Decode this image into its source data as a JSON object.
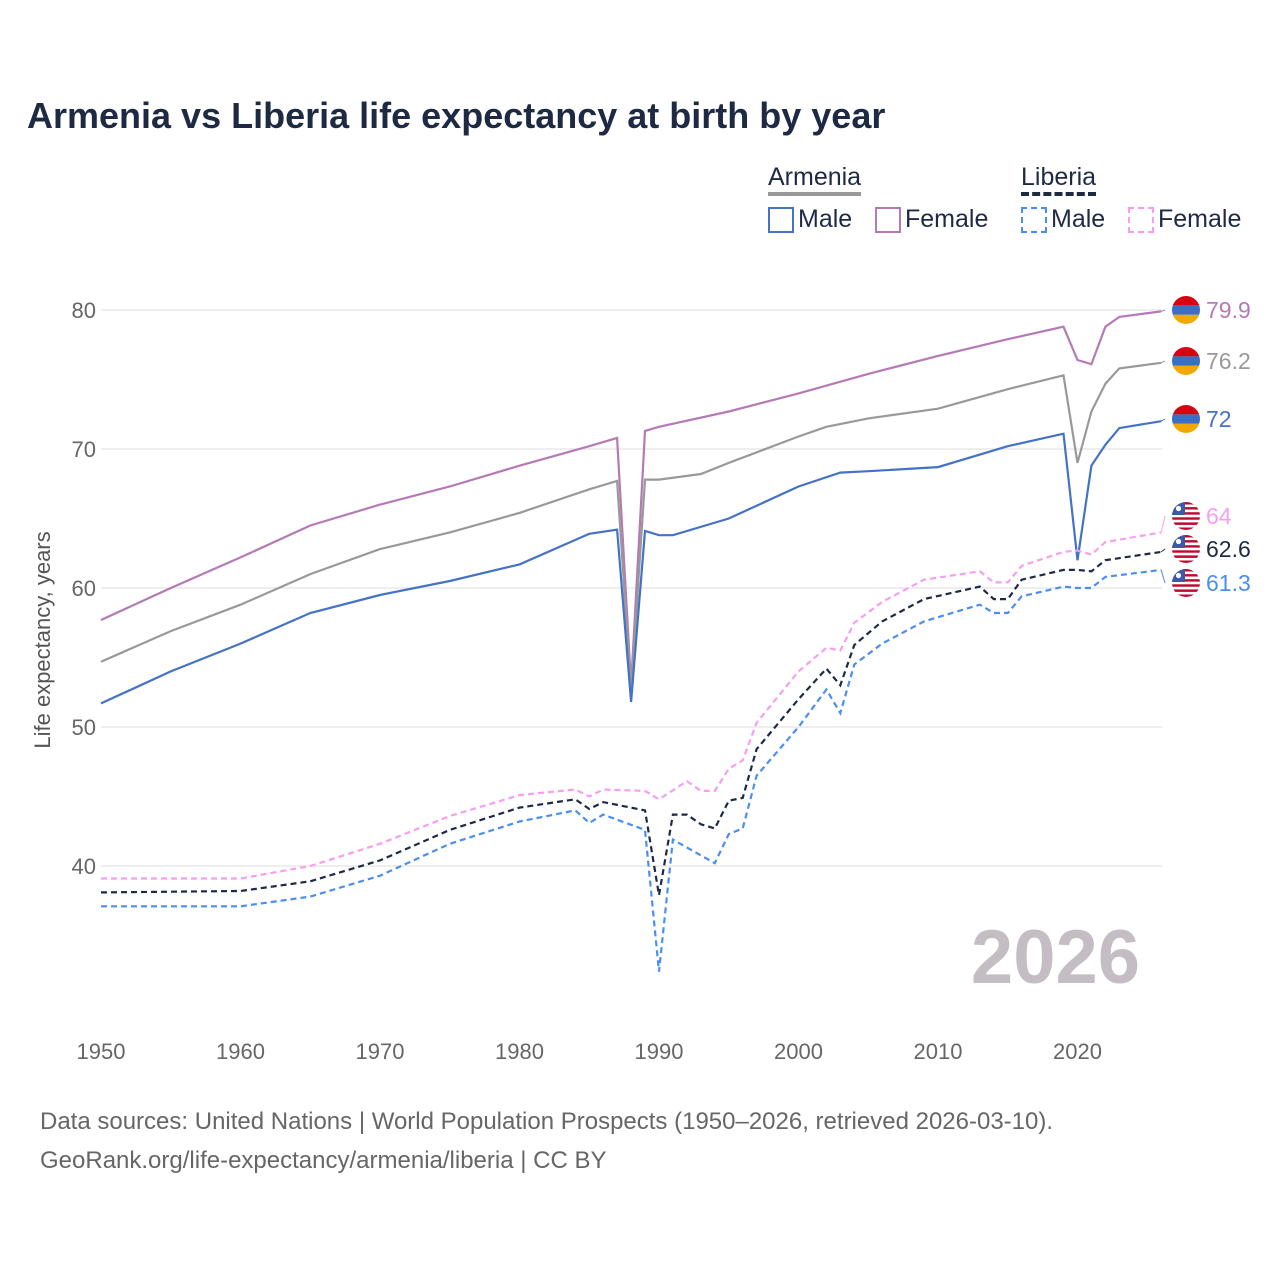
{
  "title": "Armenia vs Liberia life expectancy at birth by year",
  "legend": {
    "groups": [
      {
        "name": "Armenia",
        "items": [
          "Male",
          "Female"
        ]
      },
      {
        "name": "Liberia",
        "items": [
          "Male",
          "Female"
        ]
      }
    ]
  },
  "year_watermark": "2026",
  "footer": {
    "line1": "Data sources: United Nations | World Population Prospects (1950–2026, retrieved 2026-03-10).",
    "line2": "GeoRank.org/life-expectancy/armenia/liberia | CC BY"
  },
  "chart_data": {
    "type": "line",
    "title": "Armenia vs Liberia life expectancy at birth by year",
    "xlabel": "",
    "ylabel": "Life expectancy, years",
    "xlim": [
      1950,
      2026
    ],
    "ylim": [
      30,
      82
    ],
    "xticks": [
      "1950",
      "1960",
      "1970",
      "1980",
      "1990",
      "2000",
      "2010",
      "2020"
    ],
    "yticks": [
      "40",
      "50",
      "60",
      "70",
      "80"
    ],
    "grid": true,
    "legend_position": "top-right",
    "series": [
      {
        "name": "Armenia Female",
        "country": "Armenia",
        "color": "#b57ab5",
        "dashed": false,
        "end_label": "79.9",
        "points": [
          [
            1950,
            57.7
          ],
          [
            1955,
            60.0
          ],
          [
            1960,
            62.2
          ],
          [
            1965,
            64.5
          ],
          [
            1970,
            66.0
          ],
          [
            1975,
            67.3
          ],
          [
            1980,
            68.8
          ],
          [
            1985,
            70.2
          ],
          [
            1987,
            70.8
          ],
          [
            1988,
            53.0
          ],
          [
            1989,
            71.3
          ],
          [
            1990,
            71.6
          ],
          [
            1995,
            72.7
          ],
          [
            2000,
            74.0
          ],
          [
            2005,
            75.4
          ],
          [
            2010,
            76.7
          ],
          [
            2015,
            77.9
          ],
          [
            2019,
            78.8
          ],
          [
            2020,
            76.4
          ],
          [
            2021,
            76.1
          ],
          [
            2022,
            78.8
          ],
          [
            2023,
            79.5
          ],
          [
            2026,
            79.9
          ]
        ]
      },
      {
        "name": "Armenia",
        "country": "Armenia",
        "color": "#999999",
        "dashed": false,
        "end_label": "76.2",
        "points": [
          [
            1950,
            54.7
          ],
          [
            1955,
            56.9
          ],
          [
            1960,
            58.8
          ],
          [
            1965,
            61.0
          ],
          [
            1970,
            62.8
          ],
          [
            1975,
            64.0
          ],
          [
            1980,
            65.4
          ],
          [
            1985,
            67.1
          ],
          [
            1987,
            67.7
          ],
          [
            1988,
            52.5
          ],
          [
            1989,
            67.8
          ],
          [
            1990,
            67.8
          ],
          [
            1993,
            68.2
          ],
          [
            1995,
            69.0
          ],
          [
            2000,
            70.9
          ],
          [
            2002,
            71.6
          ],
          [
            2005,
            72.2
          ],
          [
            2010,
            72.9
          ],
          [
            2015,
            74.3
          ],
          [
            2019,
            75.3
          ],
          [
            2020,
            69.0
          ],
          [
            2021,
            72.7
          ],
          [
            2022,
            74.7
          ],
          [
            2023,
            75.8
          ],
          [
            2026,
            76.2
          ]
        ]
      },
      {
        "name": "Armenia Male",
        "country": "Armenia",
        "color": "#4472c4",
        "dashed": false,
        "end_label": "72",
        "points": [
          [
            1950,
            51.7
          ],
          [
            1955,
            54.0
          ],
          [
            1960,
            56.0
          ],
          [
            1965,
            58.2
          ],
          [
            1970,
            59.5
          ],
          [
            1975,
            60.5
          ],
          [
            1980,
            61.7
          ],
          [
            1985,
            63.9
          ],
          [
            1987,
            64.2
          ],
          [
            1988,
            51.8
          ],
          [
            1989,
            64.1
          ],
          [
            1990,
            63.8
          ],
          [
            1991,
            63.8
          ],
          [
            1995,
            65.0
          ],
          [
            2000,
            67.3
          ],
          [
            2003,
            68.3
          ],
          [
            2005,
            68.4
          ],
          [
            2010,
            68.7
          ],
          [
            2015,
            70.2
          ],
          [
            2019,
            71.1
          ],
          [
            2020,
            62.0
          ],
          [
            2021,
            68.8
          ],
          [
            2022,
            70.3
          ],
          [
            2023,
            71.5
          ],
          [
            2026,
            72.0
          ]
        ]
      },
      {
        "name": "Liberia Female",
        "country": "Liberia",
        "color": "#f79ef0",
        "dashed": true,
        "end_label": "64",
        "points": [
          [
            1950,
            39.1
          ],
          [
            1960,
            39.1
          ],
          [
            1965,
            40.0
          ],
          [
            1970,
            41.6
          ],
          [
            1975,
            43.6
          ],
          [
            1980,
            45.1
          ],
          [
            1984,
            45.5
          ],
          [
            1985,
            45.0
          ],
          [
            1986,
            45.5
          ],
          [
            1989,
            45.4
          ],
          [
            1990,
            44.8
          ],
          [
            1992,
            46.1
          ],
          [
            1993,
            45.4
          ],
          [
            1994,
            45.4
          ],
          [
            1995,
            47.0
          ],
          [
            1996,
            47.6
          ],
          [
            1997,
            50.3
          ],
          [
            2000,
            54.0
          ],
          [
            2002,
            55.7
          ],
          [
            2003,
            55.5
          ],
          [
            2004,
            57.5
          ],
          [
            2006,
            59.0
          ],
          [
            2009,
            60.6
          ],
          [
            2013,
            61.2
          ],
          [
            2014,
            60.4
          ],
          [
            2015,
            60.4
          ],
          [
            2016,
            61.6
          ],
          [
            2019,
            62.6
          ],
          [
            2020,
            62.7
          ],
          [
            2021,
            62.4
          ],
          [
            2022,
            63.3
          ],
          [
            2026,
            64.0
          ]
        ]
      },
      {
        "name": "Liberia",
        "country": "Liberia",
        "color": "#1e2a44",
        "dashed": true,
        "end_label": "62.6",
        "points": [
          [
            1950,
            38.1
          ],
          [
            1960,
            38.2
          ],
          [
            1965,
            38.9
          ],
          [
            1970,
            40.4
          ],
          [
            1975,
            42.6
          ],
          [
            1980,
            44.2
          ],
          [
            1984,
            44.8
          ],
          [
            1985,
            44.1
          ],
          [
            1986,
            44.6
          ],
          [
            1989,
            44.0
          ],
          [
            1990,
            37.9
          ],
          [
            1991,
            43.7
          ],
          [
            1992,
            43.7
          ],
          [
            1993,
            43.0
          ],
          [
            1994,
            42.7
          ],
          [
            1995,
            44.7
          ],
          [
            1996,
            44.9
          ],
          [
            1997,
            48.4
          ],
          [
            2000,
            52.0
          ],
          [
            2002,
            54.2
          ],
          [
            2003,
            53.0
          ],
          [
            2004,
            55.9
          ],
          [
            2006,
            57.6
          ],
          [
            2009,
            59.2
          ],
          [
            2013,
            60.1
          ],
          [
            2014,
            59.2
          ],
          [
            2015,
            59.2
          ],
          [
            2016,
            60.6
          ],
          [
            2019,
            61.3
          ],
          [
            2020,
            61.3
          ],
          [
            2021,
            61.2
          ],
          [
            2022,
            62.0
          ],
          [
            2026,
            62.6
          ]
        ]
      },
      {
        "name": "Liberia Male",
        "country": "Liberia",
        "color": "#4a8ff0",
        "dashed": true,
        "end_label": "61.3",
        "points": [
          [
            1950,
            37.1
          ],
          [
            1960,
            37.1
          ],
          [
            1965,
            37.8
          ],
          [
            1970,
            39.3
          ],
          [
            1975,
            41.6
          ],
          [
            1980,
            43.2
          ],
          [
            1984,
            44.0
          ],
          [
            1985,
            43.1
          ],
          [
            1986,
            43.7
          ],
          [
            1989,
            42.6
          ],
          [
            1990,
            32.4
          ],
          [
            1991,
            41.9
          ],
          [
            1994,
            40.2
          ],
          [
            1995,
            42.3
          ],
          [
            1996,
            42.7
          ],
          [
            1997,
            46.5
          ],
          [
            2000,
            50.0
          ],
          [
            2002,
            52.7
          ],
          [
            2003,
            51.0
          ],
          [
            2004,
            54.5
          ],
          [
            2006,
            56.0
          ],
          [
            2009,
            57.6
          ],
          [
            2013,
            58.8
          ],
          [
            2014,
            58.2
          ],
          [
            2015,
            58.2
          ],
          [
            2016,
            59.4
          ],
          [
            2019,
            60.1
          ],
          [
            2020,
            60.0
          ],
          [
            2021,
            60.0
          ],
          [
            2022,
            60.8
          ],
          [
            2026,
            61.3
          ]
        ]
      }
    ]
  }
}
